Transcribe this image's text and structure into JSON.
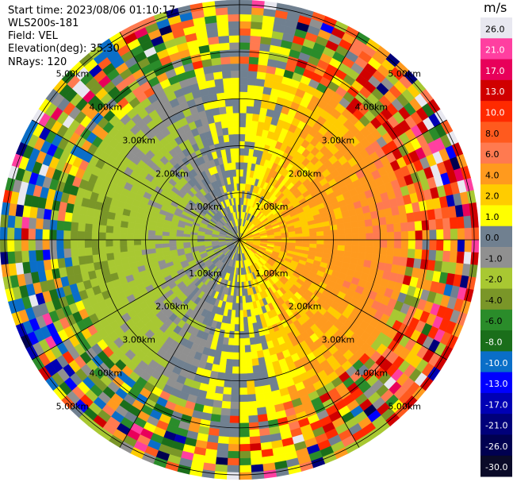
{
  "header": {
    "start_time": "Start time: 2023/08/06 01:10:17",
    "instrument": "WLS200s-181",
    "field": "Field: VEL",
    "elevation": "Elevation(deg): 35.30",
    "nrays": "NRays: 120"
  },
  "chart_data": {
    "type": "heatmap",
    "projection": "polar-ppi",
    "field": "VEL",
    "units": "m/s",
    "range_rings_km": [
      1.0,
      2.0,
      3.0,
      4.0,
      5.0
    ],
    "range_ring_labels": [
      "1.00km",
      "2.00km",
      "3.00km",
      "4.00km",
      "5.00km"
    ],
    "max_range_km": 5.1,
    "n_rays": 120,
    "colorbar": {
      "title": "m/s",
      "ticks": [
        "26.0",
        "21.0",
        "17.0",
        "13.0",
        "10.0",
        "8.0",
        "6.0",
        "4.0",
        "2.0",
        "1.0",
        "0.0",
        "-1.0",
        "-2.0",
        "-4.0",
        "-6.0",
        "-8.0",
        "-10.0",
        "-13.0",
        "-17.0",
        "-21.0",
        "-26.0",
        "-30.0"
      ],
      "colors": [
        "#e8e8f0",
        "#ff3fa0",
        "#e8005a",
        "#d00000",
        "#ff2a00",
        "#ff5a1e",
        "#ff7a50",
        "#ff9a1e",
        "#ffcc00",
        "#ffff00",
        "#708090",
        "#909090",
        "#a8c832",
        "#7a9628",
        "#2a8c2a",
        "#1a6e1a",
        "#0a6ec8",
        "#0000ff",
        "#0000b4",
        "#00007a",
        "#000050",
        "#0a0a28"
      ]
    },
    "dominant_pattern": "positive (yellow/orange) velocities on the east half, negative (green) velocities on the west half"
  }
}
